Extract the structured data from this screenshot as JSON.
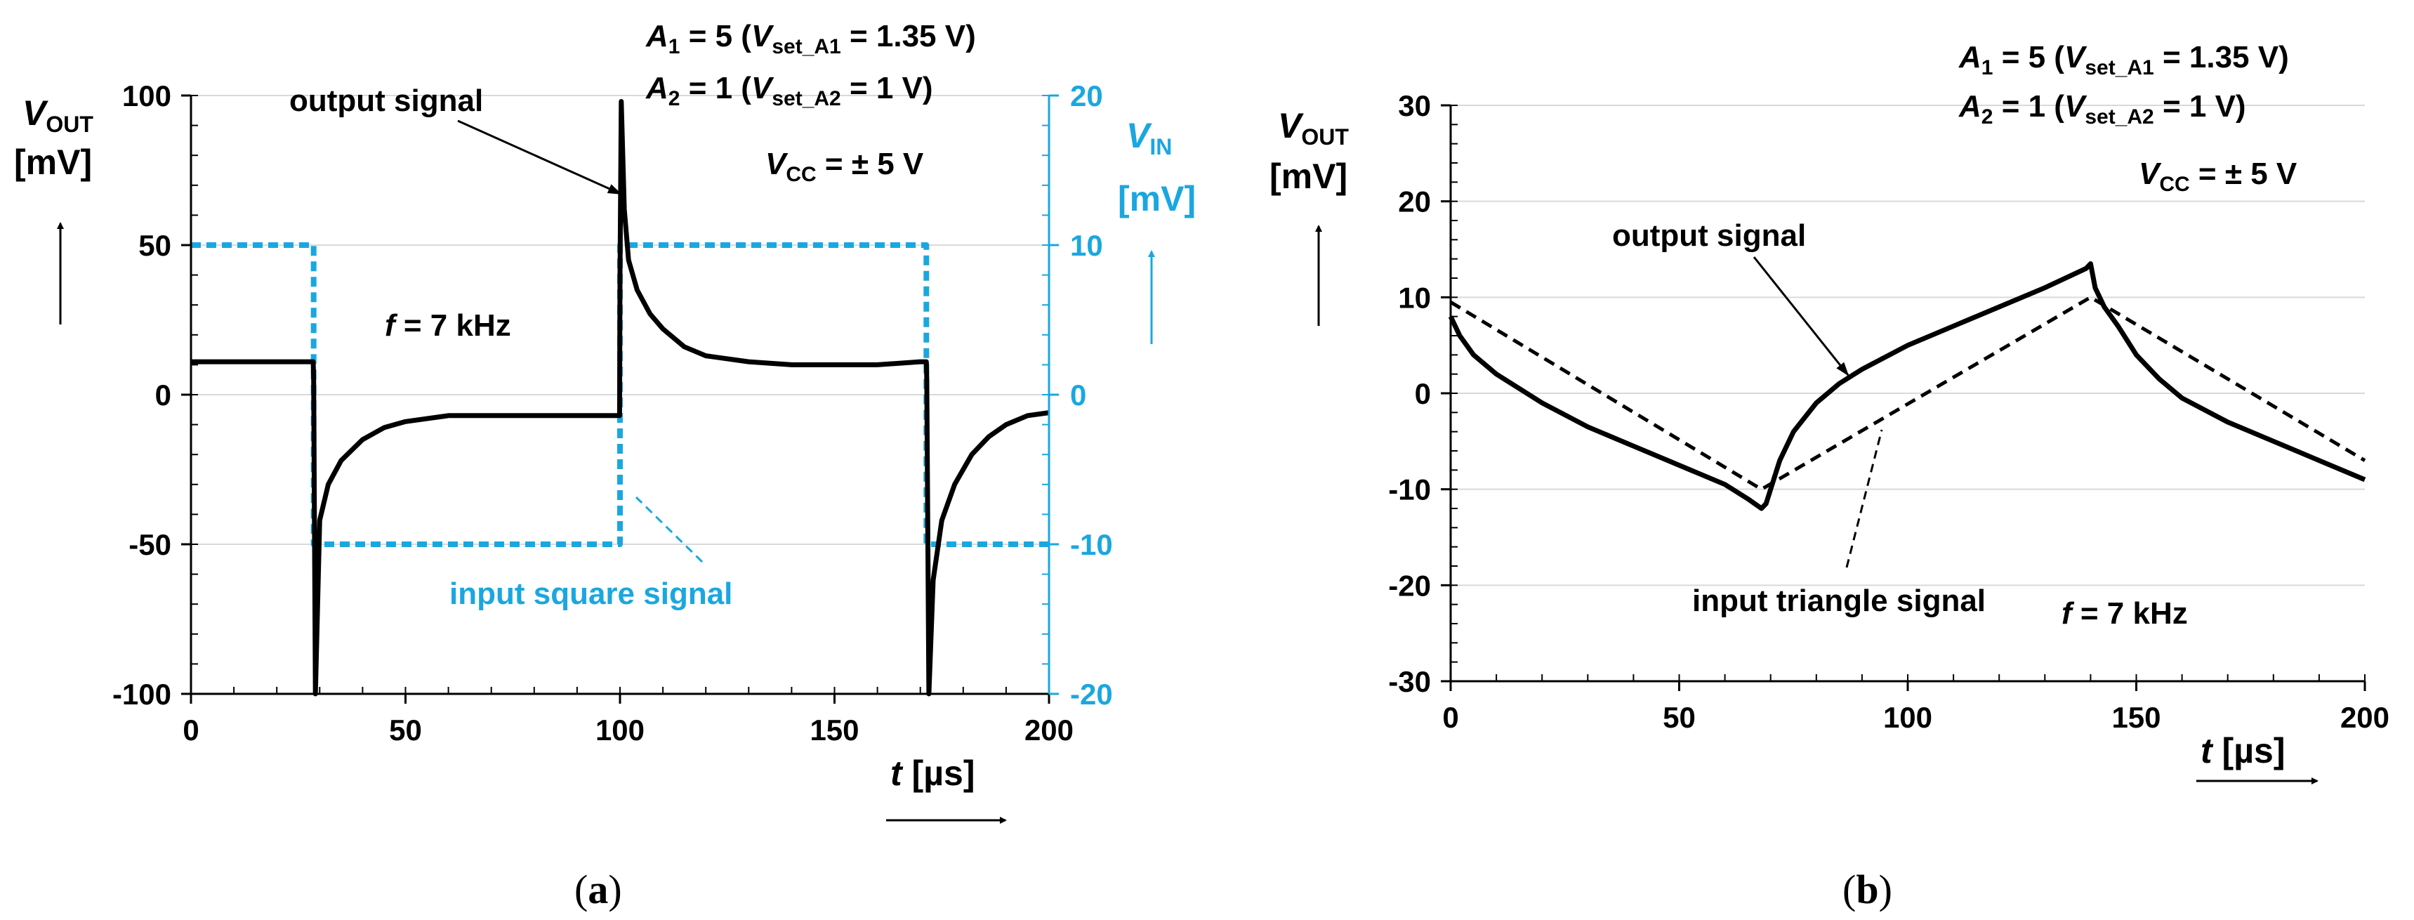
{
  "chart_data": [
    {
      "type": "line",
      "panel": "(a)",
      "caption_open": "(",
      "caption_letter": "a",
      "caption_close": ")",
      "xlabel": "t [µs]",
      "xlabel_var": "t",
      "xlabel_unit": " [µs]",
      "xlim": [
        0,
        200
      ],
      "x_ticks": [
        "0",
        "50",
        "100",
        "150",
        "200"
      ],
      "ylabel": "VOUT [mV]",
      "ylabel_var": "V",
      "ylabel_sub": "OUT",
      "ylabel_unit": "[mV]",
      "ylim": [
        -100,
        100
      ],
      "y_ticks": [
        "100",
        "50",
        "0",
        "-50",
        "-100"
      ],
      "y2label": "VIN [mV]",
      "y2label_var": "V",
      "y2label_sub": "IN",
      "y2label_unit": "[mV]",
      "y2lim": [
        -20,
        20
      ],
      "y2_ticks": [
        "20",
        "10",
        "0",
        "-10",
        "-20"
      ],
      "series": [
        {
          "name": "output signal",
          "axis": "left",
          "color": "#000000",
          "style": "solid",
          "x": [
            0,
            28.5,
            28.6,
            29,
            30,
            32,
            35,
            40,
            45,
            50,
            60,
            70,
            80,
            90,
            99.9,
            100,
            100.3,
            101,
            102,
            104,
            107,
            110,
            115,
            120,
            130,
            140,
            150,
            160,
            170,
            171.4,
            171.5,
            172,
            173,
            175,
            178,
            182,
            186,
            190,
            195,
            200
          ],
          "y": [
            11,
            11,
            5,
            -100,
            -42,
            -30,
            -22,
            -15,
            -11,
            -9,
            -7,
            -7,
            -7,
            -7,
            -7,
            40,
            98,
            62,
            45,
            35,
            27,
            22,
            16,
            13,
            11,
            10,
            10,
            10,
            11,
            11,
            5,
            -100,
            -62,
            -42,
            -30,
            -20,
            -14,
            -10,
            -7,
            -6
          ]
        },
        {
          "name": "input square signal",
          "axis": "right",
          "color": "#1aa7e0",
          "style": "dashed",
          "x": [
            0,
            28.6,
            28.6,
            100,
            100,
            171.4,
            171.4,
            200
          ],
          "y": [
            10,
            10,
            -10,
            -10,
            10,
            10,
            -10,
            -10
          ]
        }
      ],
      "annotations": {
        "a1": "A",
        "a1_sub": "1",
        "a1_rest": " = 5 (",
        "a1_vset": "V",
        "a1_vset_sub": "set_A1",
        "a1_val": " = 1.35 V)",
        "a2": "A",
        "a2_sub": "2",
        "a2_rest": " = 1 (",
        "a2_vset": "V",
        "a2_vset_sub": "set_A2",
        "a2_val": " = 1 V)",
        "vcc": "V",
        "vcc_sub": "CC",
        "vcc_val": " = ± 5 V",
        "freq": "f",
        "freq_val": " = 7 kHz",
        "output_label": "output signal",
        "input_label": "input square signal"
      }
    },
    {
      "type": "line",
      "panel": "(b)",
      "caption_open": "(",
      "caption_letter": "b",
      "caption_close": ")",
      "xlabel": "t [µs]",
      "xlabel_var": "t",
      "xlabel_unit": " [µs]",
      "xlim": [
        0,
        200
      ],
      "x_ticks": [
        "0",
        "50",
        "100",
        "150",
        "200"
      ],
      "ylabel": "VOUT [mV]",
      "ylabel_var": "V",
      "ylabel_sub": "OUT",
      "ylabel_unit": "[mV]",
      "ylim": [
        -30,
        30
      ],
      "y_ticks": [
        "30",
        "20",
        "10",
        "0",
        "-10",
        "-20",
        "-30"
      ],
      "series": [
        {
          "name": "output signal",
          "axis": "left",
          "color": "#000000",
          "style": "solid",
          "x": [
            0,
            2,
            5,
            10,
            15,
            20,
            30,
            40,
            50,
            60,
            65,
            68,
            69,
            70,
            72,
            75,
            80,
            85,
            90,
            100,
            110,
            120,
            130,
            139,
            140,
            141,
            143,
            146,
            150,
            155,
            160,
            170,
            180,
            190,
            200
          ],
          "y": [
            8,
            6,
            4,
            2,
            0.5,
            -1,
            -3.5,
            -5.5,
            -7.5,
            -9.5,
            -11,
            -12,
            -11.5,
            -10,
            -7,
            -4,
            -1,
            1,
            2.5,
            5,
            7,
            9,
            11,
            13,
            13.5,
            11,
            9,
            7,
            4,
            1.5,
            -0.5,
            -3,
            -5,
            -7,
            -9
          ]
        },
        {
          "name": "input triangle signal",
          "axis": "left",
          "color": "#000000",
          "style": "dashed",
          "x": [
            0,
            68,
            140,
            200
          ],
          "y": [
            9.5,
            -10,
            10,
            -7
          ]
        }
      ],
      "annotations": {
        "a1": "A",
        "a1_sub": "1",
        "a1_rest": " = 5 (",
        "a1_vset": "V",
        "a1_vset_sub": "set_A1",
        "a1_val": " = 1.35 V)",
        "a2": "A",
        "a2_sub": "2",
        "a2_rest": " = 1 (",
        "a2_vset": "V",
        "a2_vset_sub": "set_A2",
        "a2_val": " = 1 V)",
        "vcc": "V",
        "vcc_sub": "CC",
        "vcc_val": " = ± 5 V",
        "freq": "f",
        "freq_val": " = 7 kHz",
        "output_label": "output signal",
        "input_label": "input triangle signal"
      }
    }
  ]
}
